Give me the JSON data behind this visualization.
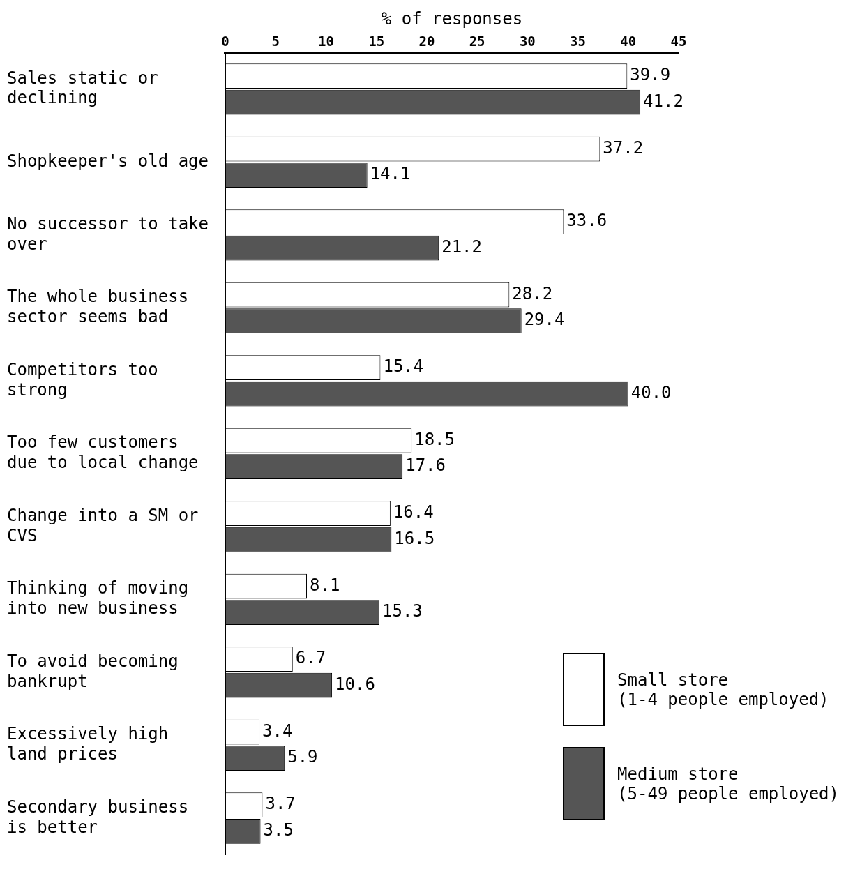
{
  "chart_data": {
    "type": "bar",
    "orientation": "horizontal",
    "xlabel": "% of responses",
    "categories": [
      "Sales static or declining",
      "Shopkeeper's old age",
      "No successor to take over",
      "The whole business sector seems bad",
      "Competitors too strong",
      "Too few customers due to local change",
      "Change into a SM or CVS",
      "Thinking of moving into new business",
      "To avoid becoming bankrupt",
      "Excessively high land prices",
      "Secondary business is better"
    ],
    "series": [
      {
        "name": "Small store (1-4 people employed)",
        "color": "#ffffff",
        "values": [
          39.9,
          37.2,
          33.6,
          28.2,
          15.4,
          18.5,
          16.4,
          8.1,
          6.7,
          3.4,
          3.7
        ],
        "value_labels": [
          "39.9",
          "37.2",
          "33.6",
          "28.2",
          "15.4",
          "18.5",
          "16.4",
          "8.1",
          "6.7",
          "3.4",
          "3.7"
        ]
      },
      {
        "name": "Medium store (5-49 people employed)",
        "color": "#555555",
        "values": [
          41.2,
          14.1,
          21.2,
          29.4,
          40.0,
          17.6,
          16.5,
          15.3,
          10.6,
          5.9,
          3.5
        ],
        "value_labels": [
          "41.2",
          "14.1",
          "21.2",
          "29.4",
          "40.0",
          "17.6",
          "16.5",
          "15.3",
          "10.6",
          "5.9",
          "3.5"
        ]
      }
    ],
    "xlim": [
      0,
      45
    ],
    "xticks": [
      0,
      5,
      10,
      15,
      20,
      25,
      30,
      35,
      40,
      45
    ],
    "grid": false,
    "legend": "bottom right"
  }
}
